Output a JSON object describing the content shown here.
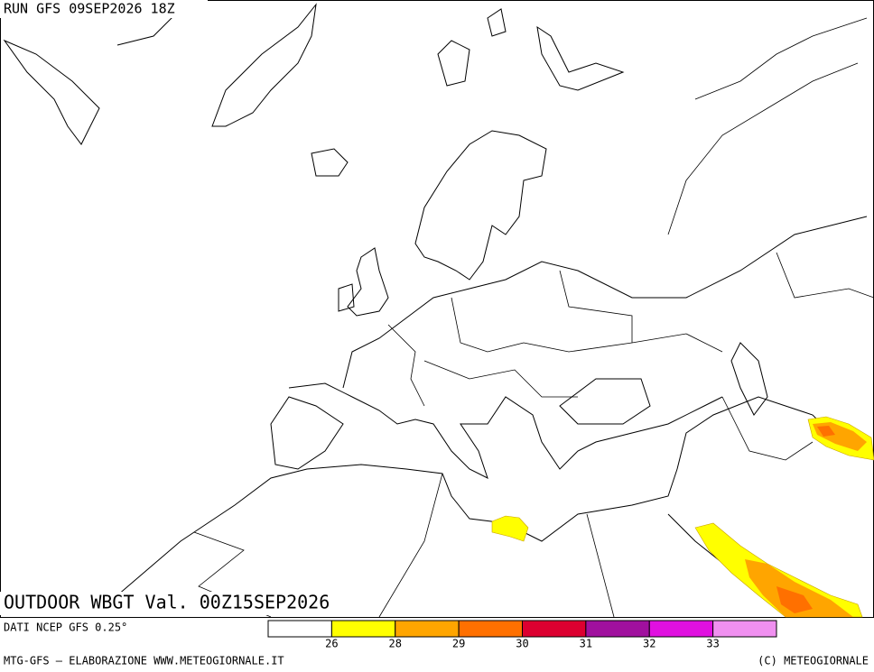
{
  "header": {
    "run": "RUN GFS 09SEP2026 18Z"
  },
  "map": {
    "title": "OUTDOOR WBGT Val. 00Z15SEP2026"
  },
  "footer": {
    "source": "DATI NCEP GFS 0.25°",
    "credit": "MTG-GFS — ELABORAZIONE WWW.METEOGIORNALE.IT",
    "copyright": "(C) METEOGIORNALE"
  },
  "colorbar": {
    "colors": [
      "#ffffff",
      "#ffff00",
      "#ffa500",
      "#ff7000",
      "#dc0030",
      "#a0109e",
      "#e010e0",
      "#f090f0"
    ],
    "ticks": [
      26,
      28,
      29,
      30,
      31,
      32,
      33
    ]
  }
}
